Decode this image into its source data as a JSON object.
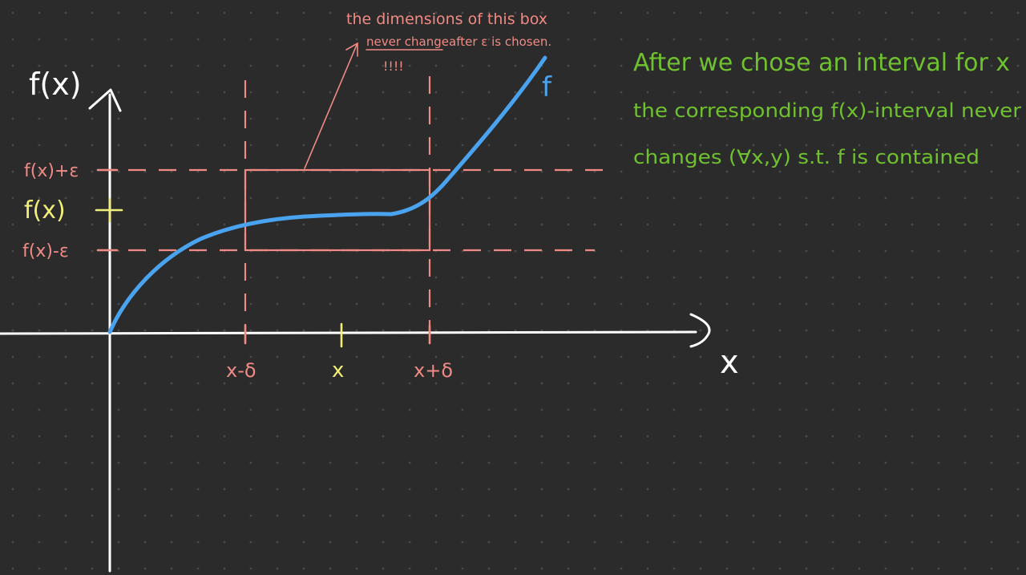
{
  "colors": {
    "background": "#2b2b2b",
    "dot_grid": "#4a4a4a",
    "axis": "#ffffff",
    "box_and_guides": "#f08a84",
    "curve": "#4aa3ef",
    "fx_highlight": "#f1ee7a",
    "note": "#6fc12f"
  },
  "axes": {
    "y_label": "f(x)",
    "x_label": "x"
  },
  "y_ticks": {
    "upper": "f(x)+ε",
    "center": "f(x)",
    "lower": "f(x)-ε"
  },
  "x_ticks": {
    "left": "x-δ",
    "center": "x",
    "right": "x+δ"
  },
  "curve_label": "f",
  "annotation": {
    "line1": "the dimensions of this box",
    "line2_underlined": "never change",
    "line2_rest": "after ε is chosen.",
    "emphasis": "!!!!"
  },
  "note": {
    "line1": "After we chose an interval for x",
    "line2": "the corresponding f(x)-interval never",
    "line3": "changes (∀x,y) s.t. f is contained"
  }
}
